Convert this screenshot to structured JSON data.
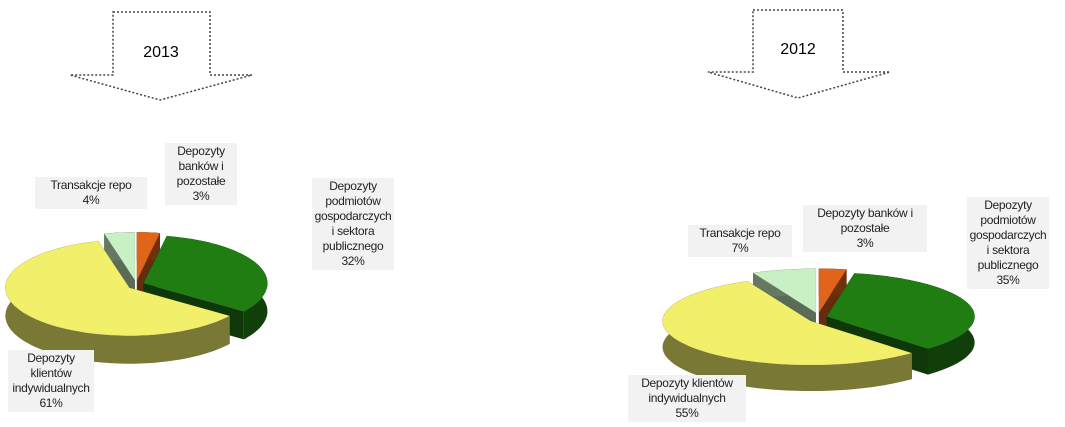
{
  "chart_data": [
    {
      "type": "pie",
      "title": "2013",
      "categories": [
        "Depozyty banków i pozostałe",
        "Depozyty podmiotów gospodarczych i sektora publicznego",
        "Depozyty klientów indywidualnych",
        "Transakcje repo"
      ],
      "values": [
        3,
        32,
        61,
        4
      ],
      "value_labels": [
        "3%",
        "32%",
        "61%",
        "4%"
      ],
      "colors": [
        "#e0641a",
        "#1f7d12",
        "#f2f06a",
        "#c9efc4"
      ]
    },
    {
      "type": "pie",
      "title": "2012",
      "categories": [
        "Depozyty banków i pozostałe",
        "Depozyty podmiotów gospodarczych i sektora publicznego",
        "Depozyty klientów indywidualnych",
        "Transakcje repo"
      ],
      "values": [
        3,
        35,
        55,
        7
      ],
      "value_labels": [
        "3%",
        "35%",
        "55%",
        "7%"
      ],
      "colors": [
        "#e0641a",
        "#1f7d12",
        "#f2f06a",
        "#c9efc4"
      ]
    }
  ]
}
